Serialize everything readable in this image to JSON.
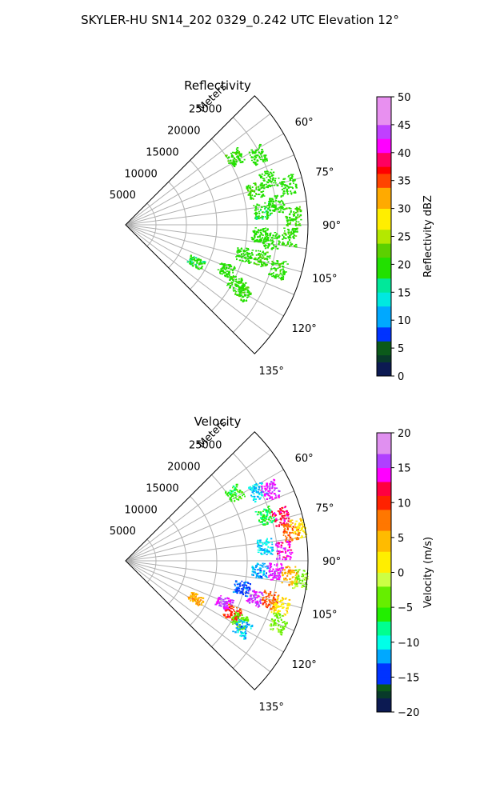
{
  "figure": {
    "title": "SKYLER-HU  SN14_202  0329_0.242 UTC Elevation 12°"
  },
  "chart_data": [
    {
      "type": "polar-sector",
      "title": "Reflectivity",
      "radial_axis_label": "Meters",
      "radial_ticks": [
        5000,
        10000,
        15000,
        20000,
        25000
      ],
      "radial_tick_labels": [
        "5000",
        "10000",
        "15000",
        "20000",
        "25000"
      ],
      "rlim": [
        0,
        30000
      ],
      "angular_ticks": [
        60,
        75,
        90,
        105,
        120,
        135
      ],
      "angular_tick_labels": [
        "60°",
        "75°",
        "90°",
        "105°",
        "120°",
        "135°"
      ],
      "thetalim_deg": [
        45,
        135
      ],
      "grid": true,
      "colorbar": {
        "label": "Reflectivity dBZ",
        "range": [
          0,
          50
        ],
        "ticks": [
          0,
          5,
          10,
          15,
          20,
          25,
          30,
          35,
          40,
          45,
          50
        ],
        "tick_labels": [
          "0",
          "5",
          "10",
          "15",
          "20",
          "25",
          "30",
          "35",
          "40",
          "45",
          "50"
        ]
      },
      "echo_clusters": [
        {
          "azimuth_deg": 58,
          "range_m": 21000,
          "value": 20
        },
        {
          "azimuth_deg": 62,
          "range_m": 24500,
          "value": 19
        },
        {
          "azimuth_deg": 72,
          "range_m": 24500,
          "value": 19
        },
        {
          "azimuth_deg": 75,
          "range_m": 22000,
          "value": 20
        },
        {
          "azimuth_deg": 76,
          "range_m": 27500,
          "value": 19
        },
        {
          "azimuth_deg": 82,
          "range_m": 25000,
          "value": 19
        },
        {
          "azimuth_deg": 84,
          "range_m": 22500,
          "value": 18
        },
        {
          "azimuth_deg": 87,
          "range_m": 27500,
          "value": 20
        },
        {
          "azimuth_deg": 94,
          "range_m": 22000,
          "value": 19
        },
        {
          "azimuth_deg": 96,
          "range_m": 24000,
          "value": 19
        },
        {
          "azimuth_deg": 94,
          "range_m": 27000,
          "value": 20
        },
        {
          "azimuth_deg": 104,
          "range_m": 20000,
          "value": 19
        },
        {
          "azimuth_deg": 104,
          "range_m": 23000,
          "value": 20
        },
        {
          "azimuth_deg": 106,
          "range_m": 26000,
          "value": 20
        },
        {
          "azimuth_deg": 114,
          "range_m": 18000,
          "value": 19
        },
        {
          "azimuth_deg": 118,
          "range_m": 20500,
          "value": 20
        },
        {
          "azimuth_deg": 120,
          "range_m": 22000,
          "value": 20
        },
        {
          "azimuth_deg": 118,
          "range_m": 13000,
          "value": 18
        }
      ]
    },
    {
      "type": "polar-sector",
      "title": "Velocity",
      "radial_axis_label": "Meters",
      "radial_ticks": [
        5000,
        10000,
        15000,
        20000,
        25000
      ],
      "radial_tick_labels": [
        "5000",
        "10000",
        "15000",
        "20000",
        "25000"
      ],
      "rlim": [
        0,
        30000
      ],
      "angular_ticks": [
        60,
        75,
        90,
        105,
        120,
        135
      ],
      "angular_tick_labels": [
        "60°",
        "75°",
        "90°",
        "105°",
        "120°",
        "135°"
      ],
      "thetalim_deg": [
        45,
        135
      ],
      "grid": true,
      "colorbar": {
        "label": "Velocity (m/s)",
        "range": [
          -20,
          20
        ],
        "ticks": [
          -20,
          -15,
          -10,
          -5,
          0,
          5,
          10,
          15,
          20
        ],
        "tick_labels": [
          "−20",
          "−15",
          "−10",
          "−5",
          "0",
          "5",
          "10",
          "15",
          "20"
        ]
      },
      "echo_clusters": [
        {
          "azimuth_deg": 58,
          "range_m": 21000,
          "value": -6
        },
        {
          "azimuth_deg": 62,
          "range_m": 24500,
          "value": -11
        },
        {
          "azimuth_deg": 64,
          "range_m": 26500,
          "value": 15
        },
        {
          "azimuth_deg": 72,
          "range_m": 24000,
          "value": -7
        },
        {
          "azimuth_deg": 74,
          "range_m": 26500,
          "value": 12
        },
        {
          "azimuth_deg": 79,
          "range_m": 29000,
          "value": 2
        },
        {
          "azimuth_deg": 80,
          "range_m": 27500,
          "value": 8
        },
        {
          "azimuth_deg": 84,
          "range_m": 23000,
          "value": -11
        },
        {
          "azimuth_deg": 86,
          "range_m": 26000,
          "value": 14
        },
        {
          "azimuth_deg": 94,
          "range_m": 22000,
          "value": -12
        },
        {
          "azimuth_deg": 94,
          "range_m": 24500,
          "value": 15
        },
        {
          "azimuth_deg": 95,
          "range_m": 27000,
          "value": 5
        },
        {
          "azimuth_deg": 96,
          "range_m": 29000,
          "value": -2
        },
        {
          "azimuth_deg": 103,
          "range_m": 19500,
          "value": -14
        },
        {
          "azimuth_deg": 106,
          "range_m": 22000,
          "value": 15
        },
        {
          "azimuth_deg": 105,
          "range_m": 24500,
          "value": 9
        },
        {
          "azimuth_deg": 106,
          "range_m": 26500,
          "value": 2
        },
        {
          "azimuth_deg": 112,
          "range_m": 27000,
          "value": -3
        },
        {
          "azimuth_deg": 113,
          "range_m": 17500,
          "value": 15
        },
        {
          "azimuth_deg": 116,
          "range_m": 19500,
          "value": 10
        },
        {
          "azimuth_deg": 118,
          "range_m": 21000,
          "value": -4
        },
        {
          "azimuth_deg": 120,
          "range_m": 22000,
          "value": -12
        },
        {
          "azimuth_deg": 118,
          "range_m": 13000,
          "value": 5
        }
      ]
    }
  ]
}
